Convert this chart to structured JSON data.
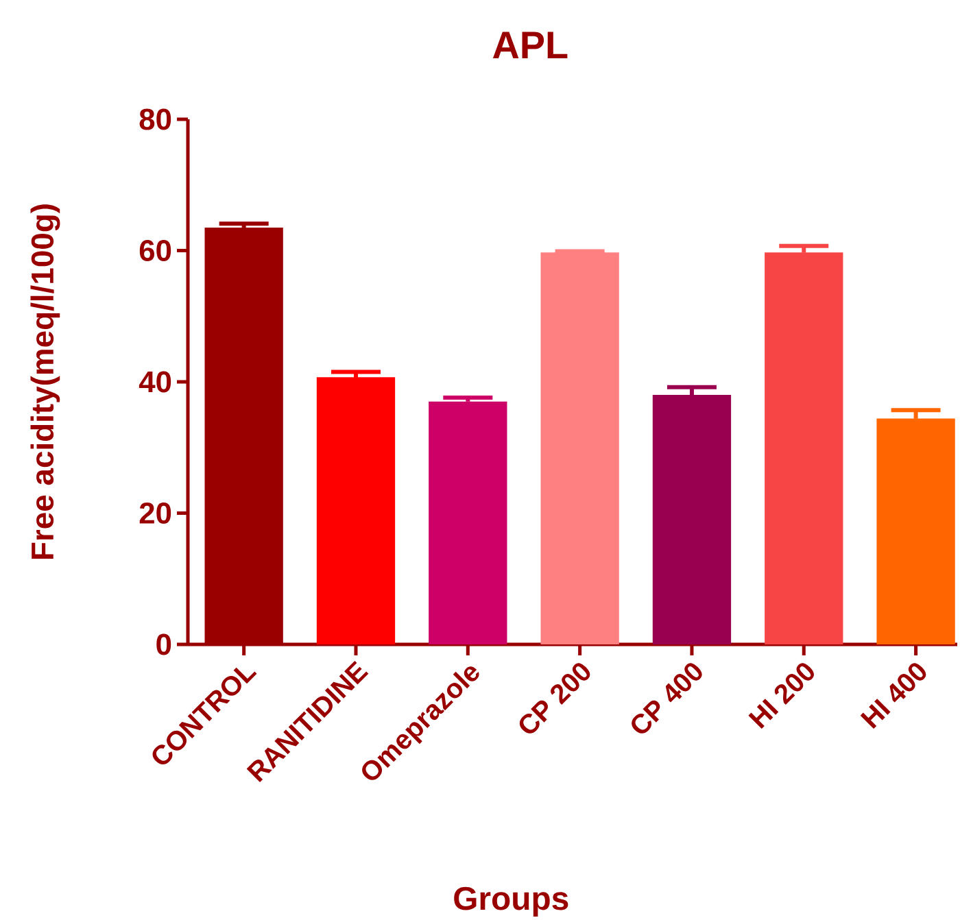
{
  "chart_data": {
    "type": "bar",
    "title": "APL",
    "xlabel": "Groups",
    "ylabel": "Free acidity(meq/l/100g)",
    "categories": [
      "CONTROL",
      "RANITIDINE",
      "Omeprazole",
      "CP 200",
      "CP 400",
      "HI 200",
      "HI 400"
    ],
    "values": [
      63.5,
      40.7,
      37.0,
      59.7,
      38.0,
      59.7,
      34.4
    ],
    "errors": [
      0.6,
      0.8,
      0.6,
      0.2,
      1.2,
      1.0,
      1.3
    ],
    "colors": [
      "#9b0000",
      "#ff0000",
      "#cc0066",
      "#ff8080",
      "#990050",
      "#f74545",
      "#ff6600"
    ],
    "ylim": [
      0,
      80
    ],
    "yticks": [
      0,
      20,
      40,
      60,
      80
    ]
  }
}
